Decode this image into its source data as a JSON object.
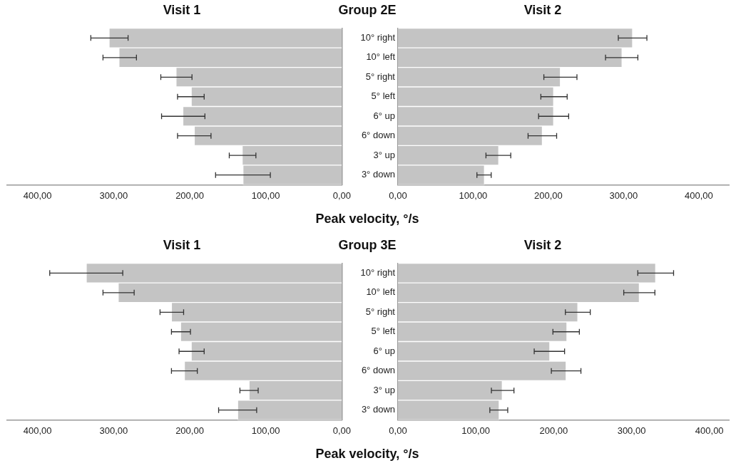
{
  "chart_data": [
    {
      "type": "bar",
      "orientation": "horizontal",
      "title": "Visit 1",
      "annotations": [
        "Group 2E"
      ],
      "xlabel": "Peak velocity, °/s",
      "categories": [
        null,
        null,
        null,
        null,
        null,
        null,
        null,
        null
      ],
      "values": [
        306,
        293,
        218,
        198,
        209,
        194,
        131,
        130
      ],
      "color": "#c4c4c4",
      "errors": [
        [
          281,
          330
        ],
        [
          270,
          314
        ],
        [
          197,
          238
        ],
        [
          181,
          216
        ],
        [
          180,
          237
        ],
        [
          172,
          216
        ],
        [
          113,
          148
        ],
        [
          94,
          166
        ]
      ],
      "xlim": [
        440,
        0
      ],
      "xticks": [
        {
          "value": 400,
          "label": "400,00"
        },
        {
          "value": 300,
          "label": "300,00"
        },
        {
          "value": 200,
          "label": "200,00"
        },
        {
          "value": 100,
          "label": "100,00"
        },
        {
          "value": 0,
          "label": "0,00"
        }
      ]
    },
    {
      "type": "bar",
      "orientation": "horizontal",
      "title": "Visit 2",
      "categories": [
        "10° right",
        "10° left",
        "5° right",
        "5° left",
        "6° up",
        "6° down",
        "3° up",
        "3° down"
      ],
      "values": [
        312,
        298,
        216,
        207,
        207,
        192,
        134,
        115
      ],
      "color": "#c4c4c4",
      "errors": [
        [
          293,
          331
        ],
        [
          276,
          319
        ],
        [
          194,
          238
        ],
        [
          190,
          225
        ],
        [
          187,
          227
        ],
        [
          173,
          211
        ],
        [
          117,
          150
        ],
        [
          105,
          124
        ]
      ],
      "xlim": [
        0,
        440
      ],
      "xticks": [
        {
          "value": 0,
          "label": "0,00"
        },
        {
          "value": 100,
          "label": "100,00"
        },
        {
          "value": 200,
          "label": "200,00"
        },
        {
          "value": 300,
          "label": "300,00"
        },
        {
          "value": 400,
          "label": "400,00"
        }
      ]
    },
    {
      "type": "bar",
      "orientation": "horizontal",
      "title": "Visit 1",
      "annotations": [
        "Group 3E"
      ],
      "xlabel": "Peak velocity, °/s",
      "categories": [
        null,
        null,
        null,
        null,
        null,
        null,
        null,
        null
      ],
      "values": [
        336,
        294,
        224,
        212,
        198,
        207,
        122,
        137
      ],
      "color": "#c4c4c4",
      "errors": [
        [
          288,
          384
        ],
        [
          273,
          314
        ],
        [
          208,
          239
        ],
        [
          199,
          224
        ],
        [
          181,
          214
        ],
        [
          190,
          224
        ],
        [
          110,
          134
        ],
        [
          112,
          162
        ]
      ],
      "xlim": [
        440,
        0
      ],
      "xticks": [
        {
          "value": 400,
          "label": "400,00"
        },
        {
          "value": 300,
          "label": "300,00"
        },
        {
          "value": 200,
          "label": "200,00"
        },
        {
          "value": 100,
          "label": "100,00"
        },
        {
          "value": 0,
          "label": "0,00"
        }
      ]
    },
    {
      "type": "bar",
      "orientation": "horizontal",
      "title": "Visit 2",
      "categories": [
        "10° right",
        "10° left",
        "5° right",
        "5° left",
        "6° up",
        "6° down",
        "3° up",
        "3° down"
      ],
      "values": [
        331,
        310,
        231,
        217,
        195,
        216,
        134,
        130
      ],
      "color": "#c4c4c4",
      "errors": [
        [
          308,
          354
        ],
        [
          290,
          330
        ],
        [
          215,
          247
        ],
        [
          199,
          233
        ],
        [
          175,
          214
        ],
        [
          197,
          235
        ],
        [
          120,
          149
        ],
        [
          118,
          141
        ]
      ],
      "xlim": [
        0,
        425
      ],
      "xticks": [
        {
          "value": 0,
          "label": "0,00"
        },
        {
          "value": 100,
          "label": "100,00"
        },
        {
          "value": 200,
          "label": "200,00"
        },
        {
          "value": 300,
          "label": "300,00"
        },
        {
          "value": 400,
          "label": "400,00"
        }
      ]
    }
  ]
}
